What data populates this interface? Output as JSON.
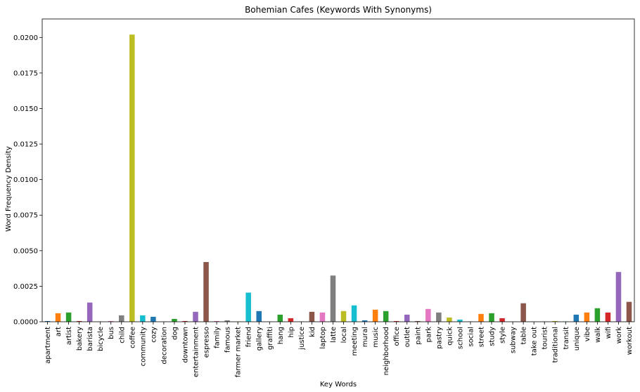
{
  "chart_data": {
    "type": "bar",
    "title": "Bohemian Cafes (Keywords With Synonyms)",
    "xlabel": "Key Words",
    "ylabel": "Word Frequency Density",
    "ylim": [
      0,
      0.0213
    ],
    "yticks": [
      "0.0000",
      "0.0025",
      "0.0050",
      "0.0075",
      "0.0100",
      "0.0125",
      "0.0150",
      "0.0175",
      "0.0200"
    ],
    "grid": false,
    "legend": "none",
    "categories": [
      "apartment",
      "art",
      "artist",
      "bakery",
      "barista",
      "bicycle",
      "bus",
      "child",
      "coffee",
      "community",
      "cozy",
      "decoration",
      "dog",
      "downtown",
      "entertainment",
      "espresso",
      "family",
      "famous",
      "farmer market",
      "friend",
      "gallery",
      "graffiti",
      "hang",
      "hip",
      "justice",
      "kid",
      "laptop",
      "latte",
      "local",
      "meeting",
      "mural",
      "music",
      "neighborhood",
      "office",
      "outlet",
      "paint",
      "park",
      "pastry",
      "quick",
      "school",
      "social",
      "street",
      "study",
      "style",
      "subway",
      "table",
      "take out",
      "tourist",
      "traditional",
      "transit",
      "unique",
      "vibe",
      "walk",
      "wifi",
      "work",
      "workout"
    ],
    "values": [
      5e-05,
      0.0006,
      0.00065,
      5e-05,
      0.00135,
      1e-05,
      5e-05,
      0.00045,
      0.0202,
      0.00045,
      0.00035,
      1e-05,
      0.0002,
      5e-05,
      0.0007,
      0.0042,
      5e-05,
      0.0001,
      1e-05,
      0.00205,
      0.00075,
      1e-05,
      0.0005,
      0.00025,
      1e-05,
      0.0007,
      0.00065,
      0.00325,
      0.00075,
      0.00115,
      0.0001,
      0.00085,
      0.00075,
      5e-05,
      0.0005,
      5e-05,
      0.0009,
      0.00065,
      0.0003,
      0.00015,
      1e-05,
      0.00055,
      0.0006,
      0.00025,
      1e-05,
      0.0013,
      1e-05,
      1e-05,
      5e-05,
      1e-05,
      0.0005,
      0.00065,
      0.00095,
      0.00065,
      0.0035,
      0.0014
    ],
    "colors": [
      "#1f77b4",
      "#ff7f0e",
      "#2ca02c",
      "#d62728",
      "#9467bd",
      "#8c564b",
      "#e377c2",
      "#7f7f7f",
      "#bcbd22",
      "#17becf"
    ]
  }
}
